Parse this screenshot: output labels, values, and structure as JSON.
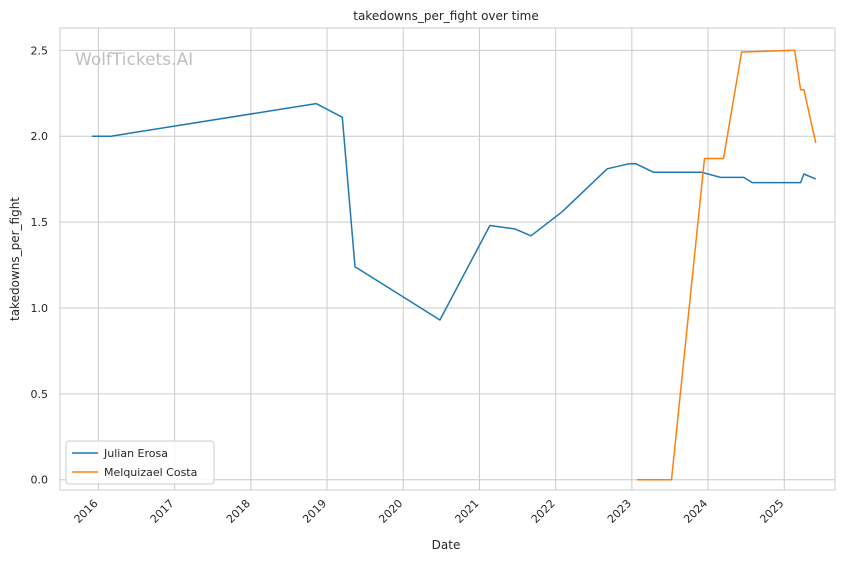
{
  "chart_data": {
    "type": "line",
    "title": "takedowns_per_fight over time",
    "xlabel": "Date",
    "ylabel": "takedowns_per_fight",
    "watermark": "WolfTickets.AI",
    "x_ticks": [
      "2016",
      "2017",
      "2018",
      "2019",
      "2020",
      "2021",
      "2022",
      "2023",
      "2024",
      "2025"
    ],
    "y_ticks": [
      "0.0",
      "0.5",
      "1.0",
      "1.5",
      "2.0",
      "2.5"
    ],
    "xlim": [
      "2015-07-01",
      "2025-09-01"
    ],
    "ylim": [
      -0.06,
      2.63
    ],
    "grid": true,
    "legend_position": "lower-left",
    "series": [
      {
        "name": "Julian Erosa",
        "color": "#1f77b4",
        "points": [
          [
            "2015-12-01",
            2.0
          ],
          [
            "2016-03-01",
            2.0
          ],
          [
            "2018-11-10",
            2.19
          ],
          [
            "2019-03-15",
            2.11
          ],
          [
            "2019-05-15",
            1.24
          ],
          [
            "2020-06-25",
            0.93
          ],
          [
            "2021-02-20",
            1.48
          ],
          [
            "2021-06-20",
            1.46
          ],
          [
            "2021-09-05",
            1.42
          ],
          [
            "2022-02-01",
            1.56
          ],
          [
            "2022-09-05",
            1.81
          ],
          [
            "2022-12-20",
            1.84
          ],
          [
            "2023-01-20",
            1.84
          ],
          [
            "2023-04-15",
            1.79
          ],
          [
            "2023-12-01",
            1.79
          ],
          [
            "2024-03-01",
            1.76
          ],
          [
            "2024-06-20",
            1.76
          ],
          [
            "2024-08-01",
            1.73
          ],
          [
            "2025-03-20",
            1.73
          ],
          [
            "2025-04-05",
            1.78
          ],
          [
            "2025-06-01",
            1.75
          ]
        ]
      },
      {
        "name": "Melquizael Costa",
        "color": "#ff7f0e",
        "points": [
          [
            "2023-01-25",
            0.0
          ],
          [
            "2023-07-10",
            0.0
          ],
          [
            "2023-12-15",
            1.87
          ],
          [
            "2024-03-15",
            1.87
          ],
          [
            "2024-06-10",
            2.49
          ],
          [
            "2025-02-20",
            2.5
          ],
          [
            "2025-03-20",
            2.27
          ],
          [
            "2025-04-05",
            2.27
          ],
          [
            "2025-06-01",
            1.96
          ]
        ]
      }
    ]
  }
}
